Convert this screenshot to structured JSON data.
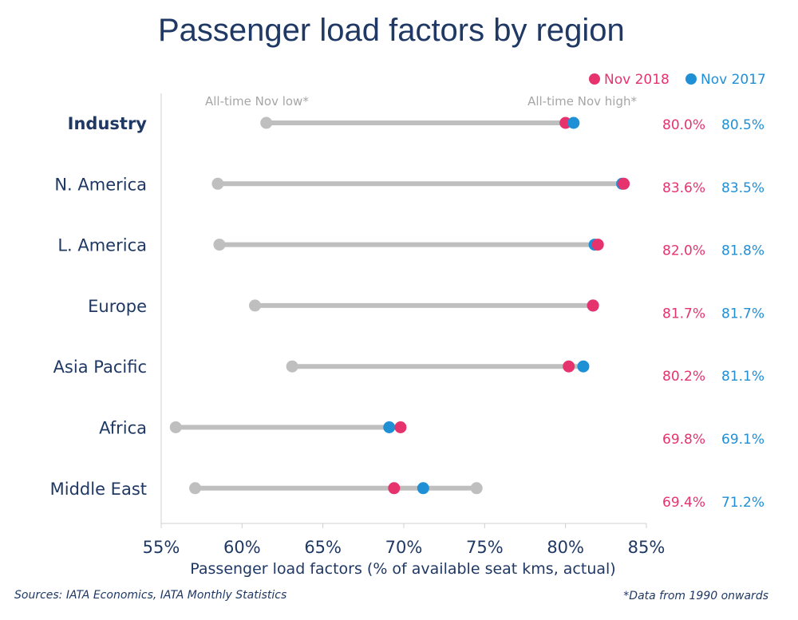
{
  "chart_data": {
    "type": "dot-range",
    "title": "Passenger load factors by region",
    "xlabel": "Passenger load factors (% of available seat kms, actual)",
    "xlim": [
      55,
      85
    ],
    "xticks": [
      55,
      60,
      65,
      70,
      75,
      80,
      85
    ],
    "xtick_labels": [
      "55%",
      "60%",
      "65%",
      "70%",
      "75%",
      "80%",
      "85%"
    ],
    "categories": [
      "Industry",
      "N. America",
      "L. America",
      "Europe",
      "Asia Pacific",
      "Africa",
      "Middle East"
    ],
    "series": [
      {
        "name": "Nov 2018",
        "color": "#e6336e",
        "values": [
          80.0,
          83.6,
          82.0,
          81.7,
          80.2,
          69.8,
          69.4
        ],
        "value_labels": [
          "80.0%",
          "83.6%",
          "82.0%",
          "81.7%",
          "80.2%",
          "69.8%",
          "69.4%"
        ]
      },
      {
        "name": "Nov 2017",
        "color": "#1f8fd6",
        "values": [
          80.5,
          83.5,
          81.8,
          81.7,
          81.1,
          69.1,
          71.2
        ],
        "value_labels": [
          "80.5%",
          "83.5%",
          "81.8%",
          "81.7%",
          "81.1%",
          "69.1%",
          "71.2%"
        ]
      }
    ],
    "all_time_low": [
      61.5,
      58.5,
      58.6,
      60.8,
      63.1,
      55.9,
      57.1
    ],
    "all_time_high": [
      80.5,
      83.6,
      82.0,
      81.7,
      81.1,
      69.8,
      74.5
    ],
    "range_color": "#bfbfbf",
    "annotations": [
      "All-time Nov low*",
      "All-time Nov high*"
    ],
    "legend_position": "top-right"
  },
  "footer": {
    "sources": "Sources: IATA Economics, IATA Monthly Statistics",
    "note": "*Data from 1990 onwards"
  },
  "colors": {
    "text": "#1f3864",
    "axis": "#d0d0d0",
    "annotation": "#a6a6a6"
  }
}
